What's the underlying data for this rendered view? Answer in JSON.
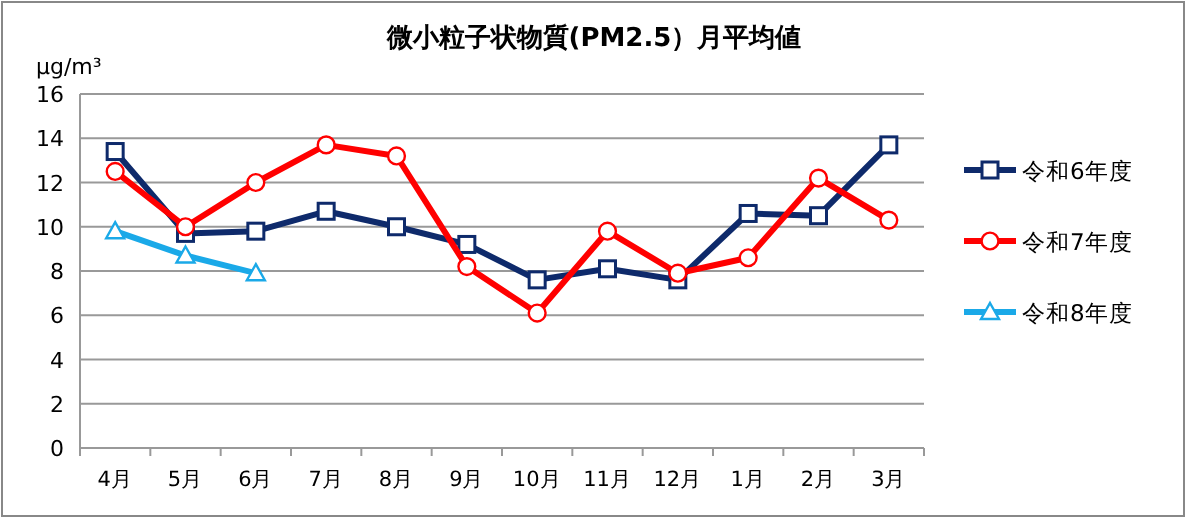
{
  "chart_data": {
    "type": "line",
    "title": "微小粒子状物質(PM2.5）月平均値",
    "ylabel": "μg/m³",
    "categories": [
      "4月",
      "5月",
      "6月",
      "7月",
      "8月",
      "9月",
      "10月",
      "11月",
      "12月",
      "1月",
      "2月",
      "3月"
    ],
    "ylim": [
      0,
      16
    ],
    "yticks": [
      0,
      2,
      4,
      6,
      8,
      10,
      12,
      14,
      16
    ],
    "grid": "y",
    "legend": "right",
    "series": [
      {
        "name": "令和6年度",
        "color": "#0e2a6b",
        "marker": "square",
        "values": [
          13.4,
          9.7,
          9.8,
          10.7,
          10.0,
          9.2,
          7.6,
          8.1,
          7.6,
          10.6,
          10.5,
          13.7
        ]
      },
      {
        "name": "令和7年度",
        "color": "#ff0000",
        "marker": "circle",
        "values": [
          12.5,
          10.0,
          12.0,
          13.7,
          13.2,
          8.2,
          6.1,
          9.8,
          7.9,
          8.6,
          12.2,
          10.3
        ]
      },
      {
        "name": "令和8年度",
        "color": "#1aa9e8",
        "marker": "triangle",
        "values": [
          9.8,
          8.7,
          7.9,
          null,
          null,
          null,
          null,
          null,
          null,
          null,
          null,
          null
        ]
      }
    ]
  }
}
